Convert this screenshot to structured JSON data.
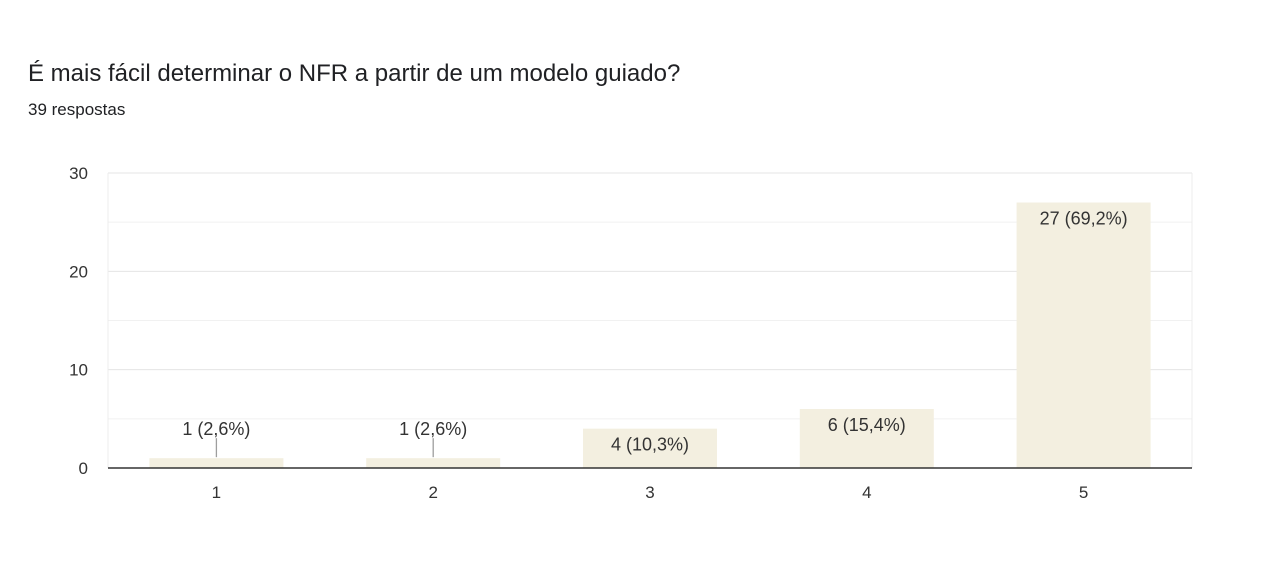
{
  "question": {
    "title": "É mais fácil determinar o NFR a partir de um modelo guiado?",
    "responses": "39 respostas"
  },
  "colors": {
    "bar": "#f3efe0",
    "grid": "#e6e6e6",
    "axis": "#333333",
    "text": "#333333"
  },
  "chart_data": {
    "type": "bar",
    "categories": [
      "1",
      "2",
      "3",
      "4",
      "5"
    ],
    "values": [
      1,
      1,
      4,
      6,
      27
    ],
    "data_labels": [
      "1 (2,6%)",
      "1 (2,6%)",
      "4 (10,3%)",
      "6 (15,4%)",
      "27 (69,2%)"
    ],
    "ylim": [
      0,
      30
    ],
    "yticks": [
      0,
      10,
      20,
      30
    ],
    "minor_grid_step": 5,
    "grid": true,
    "legend": false
  }
}
